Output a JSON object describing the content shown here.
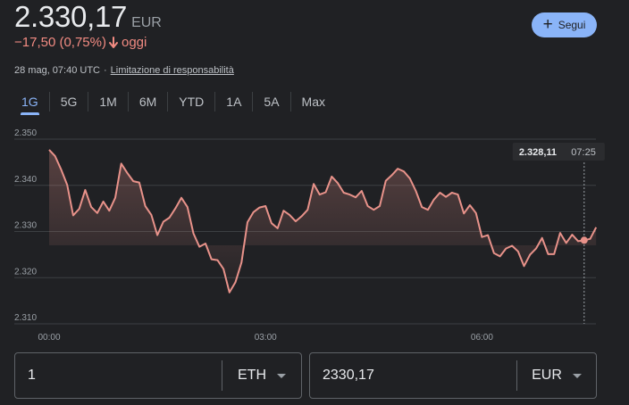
{
  "quote": {
    "price": "2.330,17",
    "currency": "EUR",
    "change": "−17,50 (0,75%)",
    "change_period": "oggi",
    "timestamp": "28 mag, 07:40 UTC",
    "separator": "·",
    "disclaimer": "Limitazione di responsabilità",
    "follow_label": "Segui",
    "follow_icon": "+"
  },
  "tabs": [
    {
      "label": "1G",
      "active": true
    },
    {
      "label": "5G"
    },
    {
      "label": "1M"
    },
    {
      "label": "6M"
    },
    {
      "label": "YTD"
    },
    {
      "label": "1A"
    },
    {
      "label": "5A"
    },
    {
      "label": "Max"
    }
  ],
  "converter": {
    "amount": "1",
    "from_currency": "ETH",
    "converted": "2330,17",
    "to_currency": "EUR"
  },
  "colors": {
    "negative": "#f28b82",
    "accent": "#8ab4f8",
    "line": "#e8928a"
  },
  "chart_data": {
    "type": "line",
    "x_ticks": [
      "00:00",
      "03:00",
      "06:00"
    ],
    "y_ticks": [
      "2.350",
      "2.340",
      "2.330",
      "2.320",
      "2.310"
    ],
    "ylim": [
      2310,
      2350
    ],
    "x_hours_range": [
      0,
      7.58
    ],
    "tooltip": {
      "value": "2.328,11",
      "time": "07:25",
      "hour": 7.4167,
      "y": 2328.11
    },
    "series": [
      {
        "x": [
          0,
          0.083,
          0.167,
          0.25,
          0.333,
          0.417,
          0.5,
          0.583,
          0.667,
          0.75,
          0.833,
          0.917,
          1.0,
          1.083,
          1.167,
          1.25,
          1.333,
          1.417,
          1.5,
          1.583,
          1.667,
          1.75,
          1.833,
          1.917,
          2.0,
          2.083,
          2.167,
          2.25,
          2.333,
          2.417,
          2.5,
          2.583,
          2.667,
          2.75,
          2.833,
          2.917,
          3.0,
          3.083,
          3.167,
          3.25,
          3.333,
          3.417,
          3.5,
          3.583,
          3.667,
          3.75,
          3.833,
          3.917,
          4.0,
          4.083,
          4.167,
          4.25,
          4.333,
          4.417,
          4.5,
          4.583,
          4.667,
          4.75,
          4.833,
          4.917,
          5.0,
          5.083,
          5.167,
          5.25,
          5.333,
          5.417,
          5.5,
          5.583,
          5.667,
          5.75,
          5.833,
          5.917,
          6.0,
          6.083,
          6.167,
          6.25,
          6.333,
          6.417,
          6.5,
          6.583,
          6.667,
          6.75,
          6.833,
          6.917,
          7.0,
          7.083,
          7.167,
          7.25,
          7.333,
          7.417,
          7.5,
          7.583
        ],
        "y": [
          2347.7,
          2346.3,
          2343.4,
          2340.1,
          2333.5,
          2334.9,
          2339.0,
          2335.3,
          2334.0,
          2336.5,
          2334.5,
          2337.3,
          2344.7,
          2342.7,
          2340.9,
          2340.6,
          2335.5,
          2333.6,
          2329.2,
          2332.1,
          2333.0,
          2335.0,
          2337.3,
          2335.3,
          2329.6,
          2326.7,
          2327.4,
          2324.0,
          2323.8,
          2321.9,
          2316.8,
          2319.0,
          2323.3,
          2332.0,
          2334.2,
          2335.2,
          2335.5,
          2331.8,
          2330.7,
          2334.5,
          2333.6,
          2332.2,
          2333.3,
          2334.7,
          2340.3,
          2338.0,
          2338.5,
          2341.9,
          2340.5,
          2338.4,
          2338.0,
          2337.4,
          2338.8,
          2335.5,
          2334.7,
          2335.5,
          2341.0,
          2342.2,
          2343.6,
          2343.0,
          2341.5,
          2338.8,
          2335.3,
          2334.7,
          2336.9,
          2338.4,
          2337.5,
          2338.4,
          2338.0,
          2333.9,
          2335.7,
          2334.0,
          2328.8,
          2329.2,
          2325.3,
          2324.6,
          2326.3,
          2326.9,
          2325.7,
          2322.5,
          2325.0,
          2326.3,
          2328.6,
          2325.1,
          2325.1,
          2329.7,
          2327.5,
          2329.3,
          2327.9,
          2328.1,
          2328.4,
          2330.9
        ]
      }
    ]
  }
}
